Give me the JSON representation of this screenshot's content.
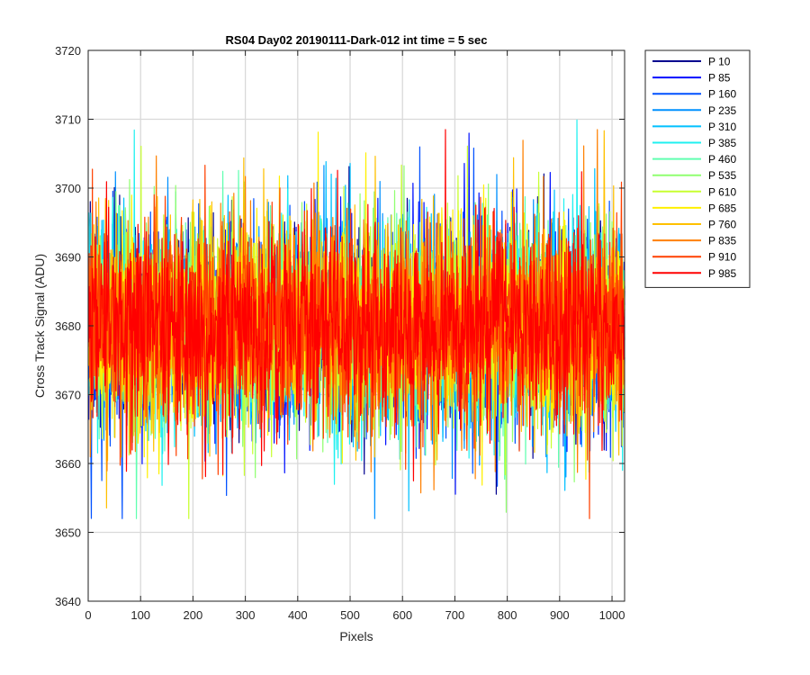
{
  "chart_data": {
    "type": "line",
    "title": "RS04 Day02 20190111-Dark-012 int time = 5 sec",
    "xlabel": "Pixels",
    "ylabel": "Cross Track Signal (ADU)",
    "xlim": [
      0,
      1024
    ],
    "ylim": [
      3640,
      3720
    ],
    "xticks": [
      "0",
      "100",
      "200",
      "300",
      "400",
      "500",
      "600",
      "700",
      "800",
      "900",
      "1000"
    ],
    "yticks": [
      "3640",
      "3650",
      "3660",
      "3670",
      "3680",
      "3690",
      "3700",
      "3710",
      "3720"
    ],
    "grid": true,
    "legend_position": "outside-top-right",
    "n_points_per_series": 1024,
    "series_model": {
      "mean": 3680,
      "typical_min": 3652,
      "typical_max": 3712
    },
    "series": [
      {
        "name": "P 10",
        "color": "#00008F"
      },
      {
        "name": "P 85",
        "color": "#0010FF"
      },
      {
        "name": "P 160",
        "color": "#0050FF"
      },
      {
        "name": "P 235",
        "color": "#0090FF"
      },
      {
        "name": "P 310",
        "color": "#00C0FF"
      },
      {
        "name": "P 385",
        "color": "#20F0F0"
      },
      {
        "name": "P 460",
        "color": "#60FFB0"
      },
      {
        "name": "P 535",
        "color": "#90FF70"
      },
      {
        "name": "P 610",
        "color": "#C8FF30"
      },
      {
        "name": "P 685",
        "color": "#FFF000"
      },
      {
        "name": "P 760",
        "color": "#FFC000"
      },
      {
        "name": "P 835",
        "color": "#FF8000"
      },
      {
        "name": "P 910",
        "color": "#FF4000"
      },
      {
        "name": "P 985",
        "color": "#FF0000"
      }
    ]
  }
}
